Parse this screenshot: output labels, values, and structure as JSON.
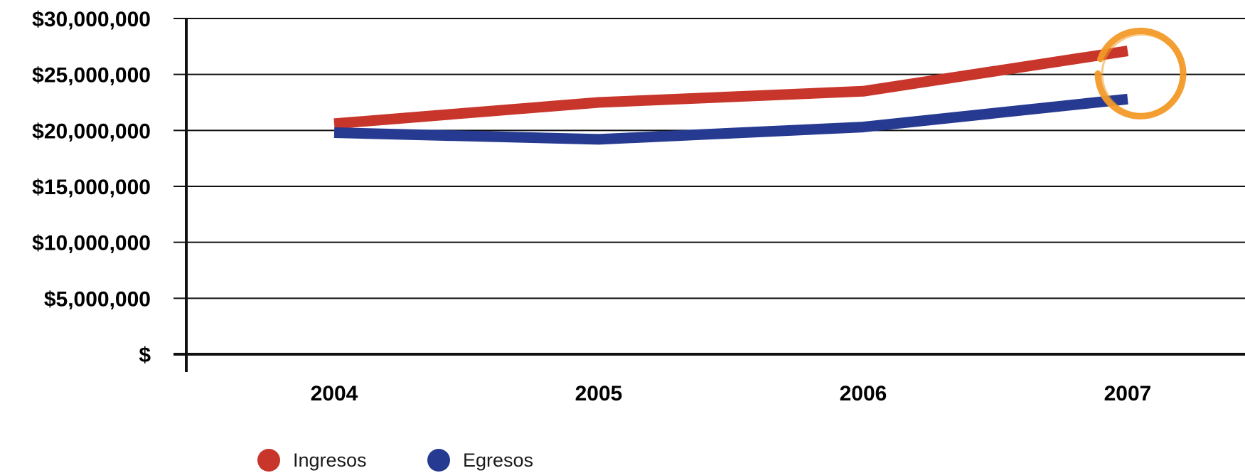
{
  "chart_data": {
    "type": "line",
    "title": "",
    "xlabel": "",
    "ylabel": "",
    "categories": [
      "2004",
      "2005",
      "2006",
      "2007"
    ],
    "ylim": [
      0,
      30000000
    ],
    "y_ticks": [
      0,
      5000000,
      10000000,
      15000000,
      20000000,
      25000000,
      30000000
    ],
    "y_tick_labels": [
      "$",
      "$5,000,000",
      "$10,000,000",
      "$15,000,000",
      "$20,000,000",
      "$25,000,000",
      "$30,000,000"
    ],
    "grid": true,
    "legend_position": "bottom-left",
    "series": [
      {
        "name": "Ingresos",
        "color": "#c8352b",
        "values": [
          20600000,
          22500000,
          23500000,
          27100000
        ]
      },
      {
        "name": "Egresos",
        "color": "#263a91",
        "values": [
          19800000,
          19200000,
          20300000,
          22800000
        ]
      }
    ],
    "highlight": {
      "color": "#f39a28",
      "category": "2007"
    }
  }
}
